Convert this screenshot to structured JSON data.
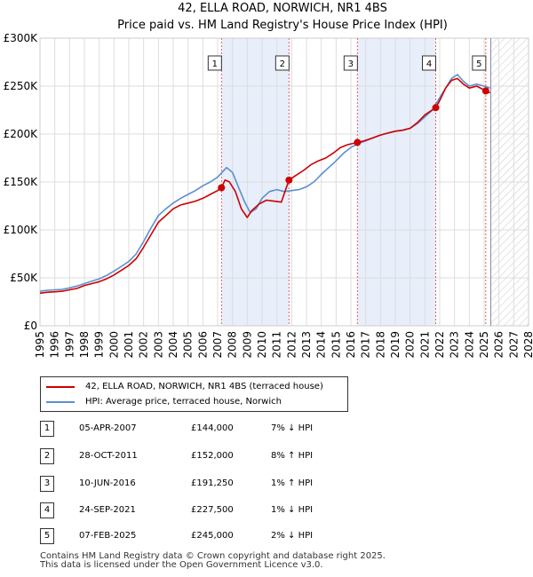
{
  "chart_data": {
    "type": "line",
    "title": "42, ELLA ROAD, NORWICH, NR1 4BS",
    "subtitle": "Price paid vs. HM Land Registry's House Price Index (HPI)",
    "xlabel": "",
    "ylabel": "",
    "xlim": [
      1995,
      2028
    ],
    "ylim": [
      0,
      300000
    ],
    "yticks": [
      0,
      50000,
      100000,
      150000,
      200000,
      250000,
      300000
    ],
    "ytick_labels": [
      "£0",
      "£50K",
      "£100K",
      "£150K",
      "£200K",
      "£250K",
      "£300K"
    ],
    "xticks": [
      1995,
      1996,
      1997,
      1998,
      1999,
      2000,
      2001,
      2002,
      2003,
      2004,
      2005,
      2006,
      2007,
      2008,
      2009,
      2010,
      2011,
      2012,
      2013,
      2014,
      2015,
      2016,
      2017,
      2018,
      2019,
      2020,
      2021,
      2022,
      2023,
      2024,
      2025,
      2026,
      2027,
      2028
    ],
    "grid": true,
    "shaded_periods": [
      {
        "from": 2007.26,
        "to": 2011.82
      },
      {
        "from": 2016.44,
        "to": 2021.73
      }
    ],
    "forecast_start": 2025.45,
    "series": [
      {
        "name": "42, ELLA ROAD, NORWICH, NR1 4BS (terraced house)",
        "color": "#cc0000",
        "x": [
          1995.0,
          1995.5,
          1996.0,
          1996.5,
          1997.0,
          1997.5,
          1998.0,
          1998.5,
          1999.0,
          1999.5,
          2000.0,
          2000.5,
          2001.0,
          2001.5,
          2002.0,
          2002.5,
          2003.0,
          2003.5,
          2004.0,
          2004.5,
          2005.0,
          2005.5,
          2006.0,
          2006.5,
          2007.0,
          2007.26,
          2007.5,
          2007.8,
          2008.2,
          2008.6,
          2009.0,
          2009.3,
          2009.8,
          2010.3,
          2010.8,
          2011.3,
          2011.82,
          2012.3,
          2012.8,
          2013.3,
          2013.8,
          2014.3,
          2014.8,
          2015.3,
          2015.8,
          2016.44,
          2016.9,
          2017.5,
          2018.0,
          2018.5,
          2019.0,
          2019.5,
          2020.0,
          2020.5,
          2021.0,
          2021.73,
          2022.0,
          2022.4,
          2022.8,
          2023.2,
          2023.6,
          2024.0,
          2024.5,
          2025.11,
          2025.4
        ],
        "values": [
          34000,
          35000,
          35500,
          36000,
          37500,
          39000,
          42000,
          44000,
          46000,
          49000,
          53000,
          58000,
          63000,
          70000,
          82000,
          95000,
          108000,
          115000,
          122000,
          126000,
          128000,
          130000,
          133000,
          137000,
          141000,
          144000,
          152000,
          150000,
          140000,
          122000,
          113000,
          120000,
          127000,
          131000,
          130000,
          129000,
          152000,
          157000,
          162000,
          168000,
          172000,
          175000,
          180000,
          186000,
          189000,
          191250,
          193000,
          196000,
          199000,
          201000,
          203000,
          204000,
          206000,
          212000,
          220000,
          227500,
          235000,
          248000,
          256000,
          258000,
          252000,
          248000,
          250000,
          245000,
          243000
        ]
      },
      {
        "name": "HPI: Average price, terraced house, Norwich",
        "color": "#5b8fd0",
        "x": [
          1995.0,
          1995.5,
          1996.0,
          1996.5,
          1997.0,
          1997.5,
          1998.0,
          1998.5,
          1999.0,
          1999.5,
          2000.0,
          2000.5,
          2001.0,
          2001.5,
          2002.0,
          2002.5,
          2003.0,
          2003.5,
          2004.0,
          2004.5,
          2005.0,
          2005.5,
          2006.0,
          2006.5,
          2007.0,
          2007.3,
          2007.6,
          2008.0,
          2008.4,
          2008.8,
          2009.2,
          2009.6,
          2010.0,
          2010.5,
          2011.0,
          2011.5,
          2012.0,
          2012.5,
          2013.0,
          2013.5,
          2014.0,
          2014.5,
          2015.0,
          2015.5,
          2016.0,
          2016.5,
          2017.0,
          2017.5,
          2018.0,
          2018.5,
          2019.0,
          2019.5,
          2020.0,
          2020.5,
          2021.0,
          2021.5,
          2022.0,
          2022.4,
          2022.8,
          2023.2,
          2023.6,
          2024.0,
          2024.5,
          2025.0,
          2025.4
        ],
        "values": [
          36000,
          37000,
          37500,
          38000,
          39500,
          41500,
          44000,
          46500,
          49000,
          52500,
          57000,
          62000,
          67000,
          75000,
          88000,
          102000,
          115000,
          122000,
          128000,
          133000,
          137000,
          141000,
          146000,
          150000,
          155000,
          160000,
          165000,
          160000,
          145000,
          130000,
          118000,
          122000,
          133000,
          140000,
          142000,
          140000,
          141000,
          142000,
          145000,
          150000,
          158000,
          165000,
          172000,
          180000,
          186000,
          190000,
          193000,
          196000,
          199000,
          201000,
          203000,
          204000,
          206000,
          211000,
          218000,
          225000,
          238000,
          248000,
          258000,
          262000,
          255000,
          250000,
          252000,
          250000,
          248000
        ]
      }
    ],
    "transactions": [
      {
        "num": "1",
        "year": 2007.26,
        "price": 144000,
        "date": "05-APR-2007",
        "price_label": "£144,000",
        "hpi": "7% ↓ HPI"
      },
      {
        "num": "2",
        "year": 2011.82,
        "price": 152000,
        "date": "28-OCT-2011",
        "price_label": "£152,000",
        "hpi": "8% ↑ HPI"
      },
      {
        "num": "3",
        "year": 2016.44,
        "price": 191250,
        "date": "10-JUN-2016",
        "price_label": "£191,250",
        "hpi": "1% ↑ HPI"
      },
      {
        "num": "4",
        "year": 2021.73,
        "price": 227500,
        "date": "24-SEP-2021",
        "price_label": "£227,500",
        "hpi": "1% ↓ HPI"
      },
      {
        "num": "5",
        "year": 2025.11,
        "price": 245000,
        "date": "07-FEB-2025",
        "price_label": "£245,000",
        "hpi": "2% ↓ HPI"
      }
    ]
  },
  "legend": {
    "property_label": "42, ELLA ROAD, NORWICH, NR1 4BS (terraced house)",
    "hpi_label": "HPI: Average price, terraced house, Norwich"
  },
  "footer": {
    "line1": "Contains HM Land Registry data © Crown copyright and database right 2025.",
    "line2": "This data is licensed under the Open Government Licence v3.0."
  },
  "colors": {
    "property": "#cc0000",
    "hpi": "#5b8fd0",
    "shade": "#e8eefa",
    "grid": "#dddddd",
    "marker_line": "#e06060"
  }
}
